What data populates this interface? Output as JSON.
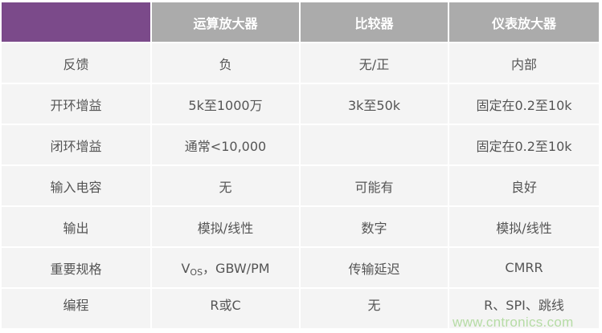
{
  "table": {
    "headers": [
      "",
      "运算放大器",
      "比较器",
      "仪表放大器"
    ],
    "rows": [
      {
        "label": "反馈",
        "cells": [
          "负",
          "无/正",
          "内部"
        ]
      },
      {
        "label": "开环增益",
        "cells": [
          "5k至1000万",
          "3k至50k",
          "固定在0.2至10k"
        ]
      },
      {
        "label": "闭环增益",
        "cells": [
          "通常<10,000",
          "",
          "固定在0.2至10k"
        ]
      },
      {
        "label": "输入电容",
        "cells": [
          "无",
          "可能有",
          "良好"
        ]
      },
      {
        "label": "输出",
        "cells": [
          "模拟/线性",
          "数字",
          "模拟/线性"
        ]
      },
      {
        "label": "重要规格",
        "cells": [
          "",
          "传输延迟",
          "CMRR"
        ],
        "vos_main": "V",
        "vos_sub": "OS",
        "vos_rest": "，GBW/PM"
      },
      {
        "label": "编程",
        "cells": [
          "R或C",
          "无",
          "R、SPI、跳线"
        ]
      }
    ],
    "colors": {
      "corner": "#7b4a8a",
      "header": "#ababab",
      "cell": "#f4f4f4"
    }
  },
  "watermark": "www.cntronics.com"
}
